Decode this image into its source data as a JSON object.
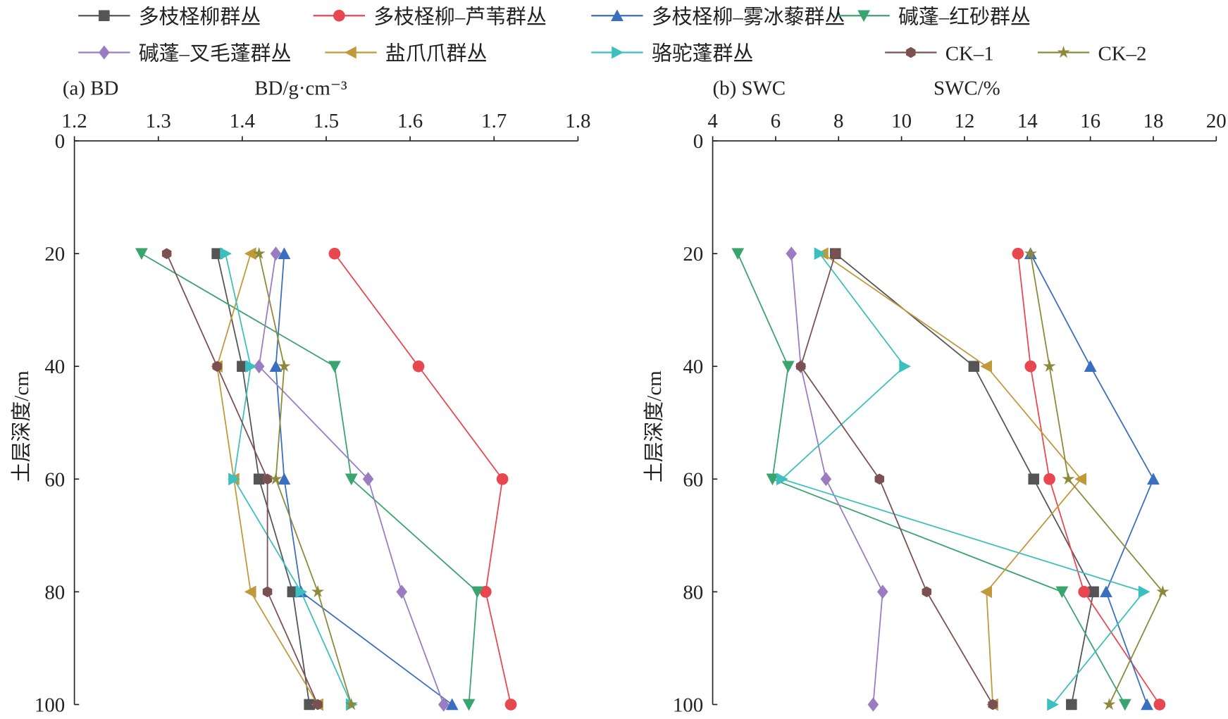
{
  "legend": [
    "多枝柽柳群丛",
    "多枝柽柳–芦苇群丛",
    "多枝柽柳–雾冰藜群丛",
    "碱蓬–红砂群丛",
    "碱蓬–叉毛蓬群丛",
    "盐爪爪群丛",
    "骆驼蓬群丛",
    "CK–1",
    "CK–2"
  ],
  "series_style": [
    {
      "color": "#555555",
      "marker": "square"
    },
    {
      "color": "#e8474f",
      "marker": "circle"
    },
    {
      "color": "#3a6fbf",
      "marker": "triangle-up"
    },
    {
      "color": "#3aa46f",
      "marker": "triangle-down"
    },
    {
      "color": "#9a7cc0",
      "marker": "diamond"
    },
    {
      "color": "#c0993a",
      "marker": "triangle-left"
    },
    {
      "color": "#3cbfbf",
      "marker": "triangle-right"
    },
    {
      "color": "#7a5050",
      "marker": "hexagon"
    },
    {
      "color": "#8c8a3a",
      "marker": "star"
    }
  ],
  "chart_data": [
    {
      "type": "line",
      "panel_label": "(a) BD",
      "title": "BD/g·cm⁻³",
      "ylabel": "土层深度/cm",
      "xlim": [
        1.2,
        1.8
      ],
      "xticks": [
        "1.2",
        "1.3",
        "1.4",
        "1.5",
        "1.6",
        "1.7",
        "1.8"
      ],
      "ylim": [
        0,
        100
      ],
      "yticks": [
        "0",
        "20",
        "40",
        "60",
        "80",
        "100"
      ],
      "depth": [
        20,
        40,
        60,
        80,
        100
      ],
      "series": [
        {
          "name": "多枝柽柳群丛",
          "values": [
            1.37,
            1.4,
            1.42,
            1.46,
            1.48
          ]
        },
        {
          "name": "多枝柽柳–芦苇群丛",
          "values": [
            1.51,
            1.61,
            1.71,
            1.69,
            1.72
          ]
        },
        {
          "name": "多枝柽柳–雾冰藜群丛",
          "values": [
            1.45,
            1.44,
            1.45,
            1.47,
            1.65
          ]
        },
        {
          "name": "碱蓬–红砂群丛",
          "values": [
            1.28,
            1.51,
            1.53,
            1.68,
            1.67
          ]
        },
        {
          "name": "碱蓬–叉毛蓬群丛",
          "values": [
            1.44,
            1.42,
            1.55,
            1.59,
            1.64
          ]
        },
        {
          "name": "盐爪爪群丛",
          "values": [
            1.41,
            1.37,
            1.39,
            1.41,
            1.49
          ]
        },
        {
          "name": "骆驼蓬群丛",
          "values": [
            1.38,
            1.41,
            1.39,
            1.47,
            1.53
          ]
        },
        {
          "name": "CK–1",
          "values": [
            1.31,
            1.37,
            1.43,
            1.43,
            1.49
          ]
        },
        {
          "name": "CK–2",
          "values": [
            1.42,
            1.45,
            1.44,
            1.49,
            1.53
          ]
        }
      ]
    },
    {
      "type": "line",
      "panel_label": "(b) SWC",
      "title": "SWC/%",
      "ylabel": "土层深度/cm",
      "xlim": [
        4,
        20
      ],
      "xticks": [
        "4",
        "6",
        "8",
        "10",
        "12",
        "14",
        "16",
        "18",
        "20"
      ],
      "ylim": [
        0,
        100
      ],
      "yticks": [
        "0",
        "20",
        "40",
        "60",
        "80",
        "100"
      ],
      "depth": [
        20,
        40,
        60,
        80,
        100
      ],
      "series": [
        {
          "name": "多枝柽柳群丛",
          "values": [
            7.9,
            12.3,
            14.2,
            16.1,
            15.4
          ]
        },
        {
          "name": "多枝柽柳–芦苇群丛",
          "values": [
            13.7,
            14.1,
            14.7,
            15.8,
            18.2
          ]
        },
        {
          "name": "多枝柽柳–雾冰藜群丛",
          "values": [
            14.1,
            16.0,
            18.0,
            16.5,
            17.8
          ]
        },
        {
          "name": "碱蓬–红砂群丛",
          "values": [
            4.8,
            6.4,
            5.9,
            15.1,
            17.1
          ]
        },
        {
          "name": "碱蓬–叉毛蓬群丛",
          "values": [
            6.5,
            6.8,
            7.6,
            9.4,
            9.1
          ]
        },
        {
          "name": "盐爪爪群丛",
          "values": [
            7.5,
            12.7,
            15.7,
            12.7,
            12.9
          ]
        },
        {
          "name": "骆驼蓬群丛",
          "values": [
            7.4,
            10.1,
            6.2,
            17.7,
            14.8
          ]
        },
        {
          "name": "CK–1",
          "values": [
            7.9,
            6.8,
            9.3,
            10.8,
            12.9
          ]
        },
        {
          "name": "CK–2",
          "values": [
            14.1,
            14.7,
            15.3,
            18.3,
            16.6
          ]
        }
      ]
    }
  ]
}
